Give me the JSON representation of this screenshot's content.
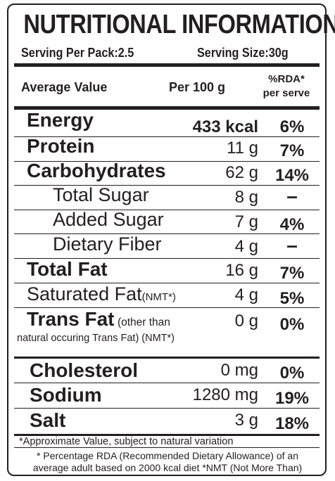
{
  "title": "NUTRITIONAL INFORMATION",
  "serving": {
    "per_pack": "Serving Per Pack:2.5",
    "size": "Serving Size:30g"
  },
  "header": {
    "average": "Average Value",
    "per100": "Per 100 g",
    "rda_line1": "%RDA*",
    "rda_line2": "per serve"
  },
  "rows": [
    {
      "name": "Energy",
      "value": "433 kcal",
      "rda": "6%"
    },
    {
      "name": "Protein",
      "value": "11 g",
      "rda": "7%"
    },
    {
      "name": "Carbohydrates",
      "value": "62 g",
      "rda": "14%"
    },
    {
      "name": "Total Sugar",
      "value": "8 g",
      "rda": "–"
    },
    {
      "name": "Added Sugar",
      "value": "7 g",
      "rda": "4%"
    },
    {
      "name": "Dietary Fiber",
      "value": "4 g",
      "rda": "–"
    },
    {
      "name": "Total Fat",
      "value": "16 g",
      "rda": "7%"
    },
    {
      "name": "Saturated Fat",
      "note": "(NMT*)",
      "value": "4 g",
      "rda": "5%"
    },
    {
      "name": "Trans Fat",
      "note": "(other than",
      "note2": "natural occuring Trans Fat) (NMT*)",
      "value": "0 g",
      "rda": "0%"
    },
    {
      "name": "Cholesterol",
      "value": "0 mg",
      "rda": "0%"
    },
    {
      "name": "Sodium",
      "value": "1280 mg",
      "rda": "19%"
    },
    {
      "name": "Salt",
      "value": "3 g",
      "rda": "18%"
    }
  ],
  "footnotes": {
    "approx": "*Approximate Value, subject to natural variation",
    "rda_line1": "* Percentage RDA (Recommended Dietary Allowance) of an",
    "rda_line2": "average adult based on 2000 kcal diet *NMT (Not More Than)"
  }
}
